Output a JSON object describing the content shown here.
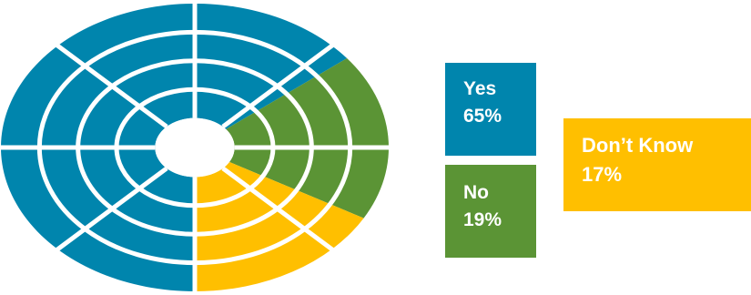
{
  "chart_data": {
    "type": "pie",
    "categories": [
      "Yes",
      "No",
      "Don’t Know"
    ],
    "values": [
      65,
      19,
      17
    ],
    "value_labels": [
      "65%",
      "19%",
      "17%"
    ],
    "colors": [
      "#0085AD",
      "#5B9435",
      "#FFBF00"
    ],
    "rings": 4,
    "sector_dividers": 8,
    "legend": [
      {
        "label": "Yes",
        "value": "65%"
      },
      {
        "label": "No",
        "value": "19%"
      },
      {
        "label": "Don’t Know",
        "value": "17%"
      }
    ]
  }
}
